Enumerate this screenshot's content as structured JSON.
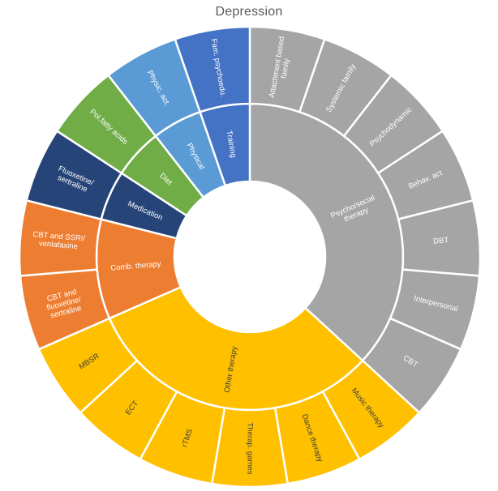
{
  "chart_data": {
    "type": "pie",
    "subtype": "sunburst",
    "title": "Depression",
    "legend": "none",
    "rings": 2,
    "note": "two-level sunburst; all 19 leaf segments have equal value",
    "separator_color": "#ffffff",
    "title_color": "#595959",
    "categories": [
      {
        "name": "Psycho/social therapy",
        "color": "#a5a5a5",
        "text_color": "#ffffff",
        "label_lines": [
          "Psycho/social",
          "therapy"
        ],
        "children": [
          {
            "name": "Attachment based family",
            "value": 1,
            "label_lines": [
              "Attachment based",
              "family"
            ]
          },
          {
            "name": "Systemic family",
            "value": 1,
            "label_lines": [
              "Systemic family"
            ]
          },
          {
            "name": "Psychodynamic",
            "value": 1,
            "label_lines": [
              "Psychodynamic"
            ]
          },
          {
            "name": "Behav. act",
            "value": 1,
            "label_lines": [
              "Behav. act"
            ]
          },
          {
            "name": "DBT",
            "value": 1,
            "label_lines": [
              "DBT"
            ]
          },
          {
            "name": "Interpersonal",
            "value": 1,
            "label_lines": [
              "Interpersonal"
            ]
          },
          {
            "name": "CBT",
            "value": 1,
            "label_lines": [
              "CBT"
            ]
          }
        ]
      },
      {
        "name": "Other therapy",
        "color": "#ffc000",
        "text_color": "#3f3f3f",
        "label_lines": [
          "Other therapy"
        ],
        "children": [
          {
            "name": "Music therapy",
            "value": 1,
            "label_lines": [
              "Music therapy"
            ]
          },
          {
            "name": "Dance therapy",
            "value": 1,
            "label_lines": [
              "Dance therapy"
            ]
          },
          {
            "name": "Therap. games",
            "value": 1,
            "label_lines": [
              "Therap. games"
            ]
          },
          {
            "name": "rTMS",
            "value": 1,
            "label_lines": [
              "rTMS"
            ]
          },
          {
            "name": "ECT",
            "value": 1,
            "label_lines": [
              "ECT"
            ]
          },
          {
            "name": "MBSR",
            "value": 1,
            "label_lines": [
              "MBSR"
            ]
          }
        ]
      },
      {
        "name": "Comb. therapy",
        "color": "#ed7d31",
        "text_color": "#ffffff",
        "label_lines": [
          "Comb. therapy"
        ],
        "children": [
          {
            "name": "CBT and fluoxetine/sertraline",
            "value": 1,
            "label_lines": [
              "CBT and",
              "fluoxetine/",
              "sertraline"
            ]
          },
          {
            "name": "CBT and SSRI/venlafaxine",
            "value": 1,
            "label_lines": [
              "CBT and SSRI/",
              "venlafaxine"
            ]
          }
        ]
      },
      {
        "name": "Medication",
        "color": "#264478",
        "text_color": "#ffffff",
        "label_lines": [
          "Medication"
        ],
        "children": [
          {
            "name": "Fluoxetine/sertraline",
            "value": 1,
            "label_lines": [
              "Fluoxetine/",
              "sertraline"
            ]
          }
        ]
      },
      {
        "name": "Diet",
        "color": "#70ad47",
        "text_color": "#ffffff",
        "label_lines": [
          "Diet"
        ],
        "children": [
          {
            "name": "Pol.fatty acids",
            "value": 1,
            "label_lines": [
              "Pol.fatty acids"
            ]
          }
        ]
      },
      {
        "name": "Physical",
        "color": "#5b9bd5",
        "text_color": "#ffffff",
        "label_lines": [
          "Physical"
        ],
        "children": [
          {
            "name": "Physic. act.",
            "value": 1,
            "label_lines": [
              "Physic. act."
            ]
          }
        ]
      },
      {
        "name": "Training",
        "color": "#4472c4",
        "text_color": "#ffffff",
        "label_lines": [
          "Fam. psychoedu.",
          "_inner:Training"
        ],
        "children": [
          {
            "name": "Fam. psychoedu.",
            "value": 1,
            "label_lines": [
              "Fam. psychoedu."
            ]
          }
        ]
      }
    ]
  }
}
